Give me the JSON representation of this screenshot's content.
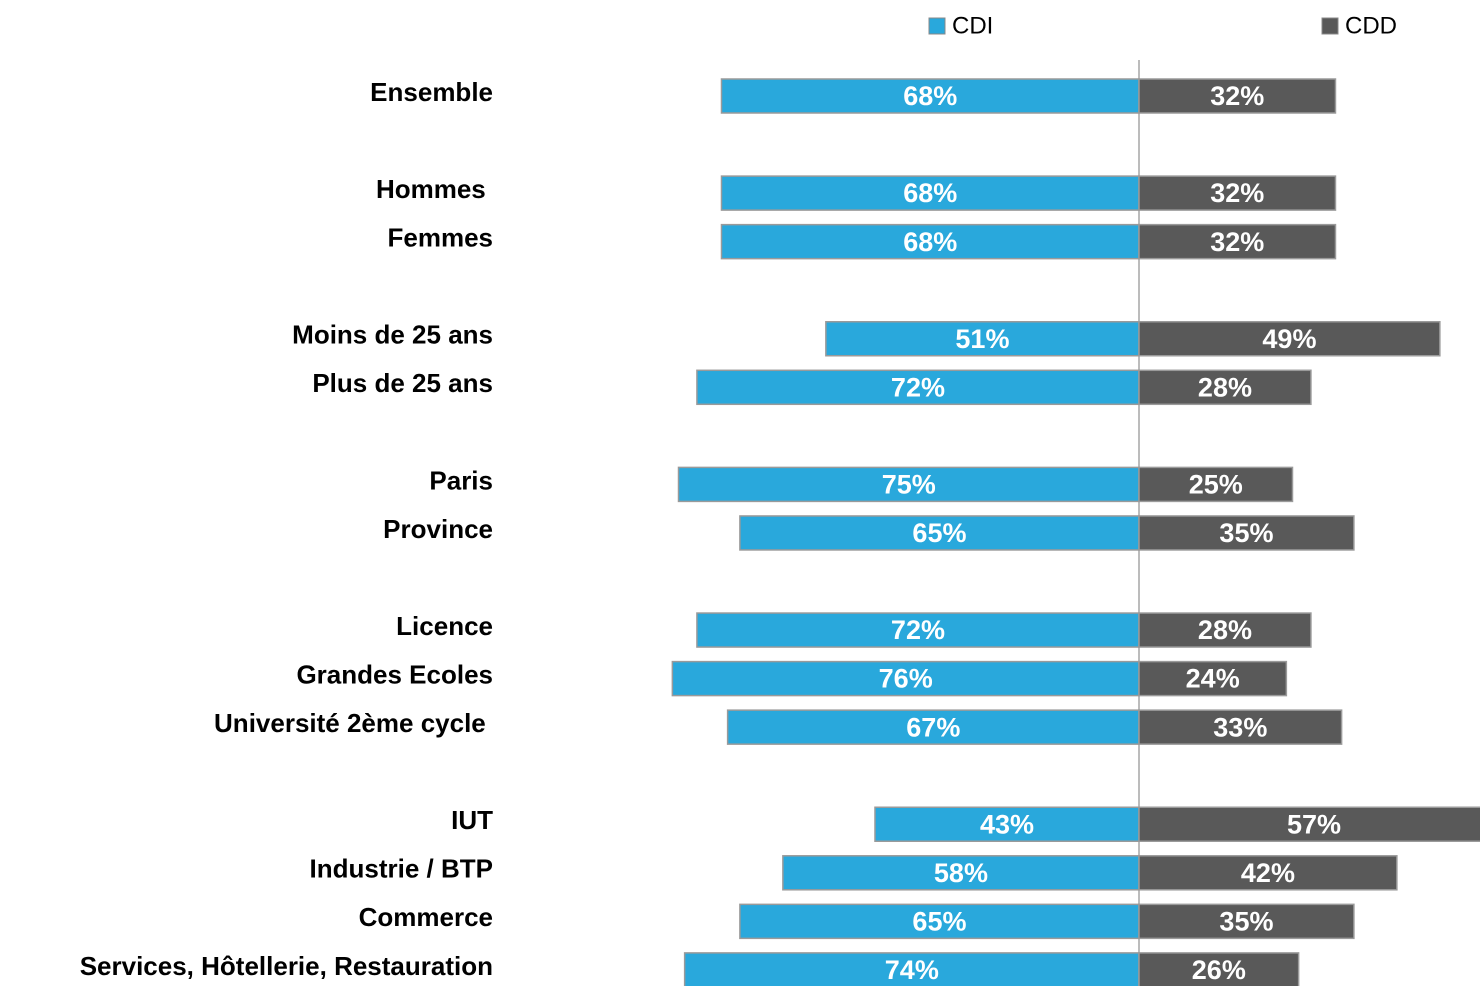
{
  "chart_data": {
    "type": "diverging_bar",
    "categories": [
      "Ensemble",
      null,
      "Hommes ",
      "Femmes",
      null,
      "Moins de 25 ans",
      "Plus de 25 ans",
      null,
      "Paris",
      "Province",
      null,
      "Licence",
      "Grandes Ecoles",
      "Université 2ème cycle ",
      null,
      "IUT",
      "Industrie / BTP",
      "Commerce",
      "Services, Hôtellerie, Restauration"
    ],
    "series": [
      {
        "name": "CDI",
        "color": "#29a8dc",
        "values": [
          68,
          null,
          68,
          68,
          null,
          51,
          72,
          null,
          75,
          65,
          null,
          72,
          76,
          67,
          null,
          43,
          58,
          65,
          74
        ],
        "value_labels": [
          "68%",
          null,
          "68%",
          "68%",
          null,
          "51%",
          "72%",
          null,
          "75%",
          "65%",
          null,
          "72%",
          "76%",
          "67%",
          null,
          "43%",
          "58%",
          "65%",
          "74%"
        ]
      },
      {
        "name": "CDD",
        "color": "#595959",
        "values": [
          32,
          null,
          32,
          32,
          null,
          49,
          28,
          null,
          25,
          35,
          null,
          28,
          24,
          33,
          null,
          57,
          42,
          35,
          26
        ],
        "value_labels": [
          "32%",
          null,
          "32%",
          "32%",
          null,
          "49%",
          "28%",
          null,
          "25%",
          "35%",
          null,
          "28%",
          "24%",
          "33%",
          null,
          "57%",
          "42%",
          "35%",
          "26%"
        ]
      }
    ]
  }
}
